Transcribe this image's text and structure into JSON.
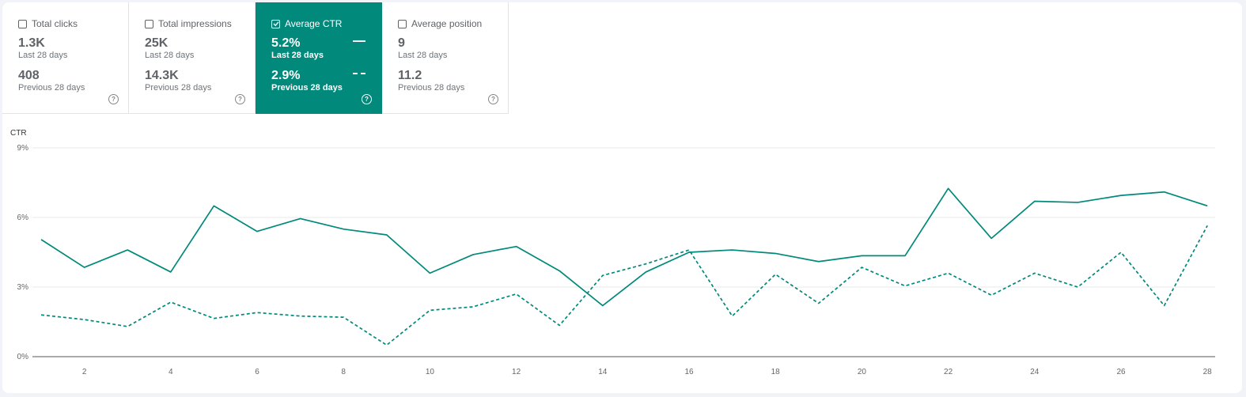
{
  "metric_cards": [
    {
      "label": "Total clicks",
      "checked": false,
      "value": "1.3K",
      "period": "Last 28 days",
      "prev_value": "408",
      "prev_period": "Previous 28 days"
    },
    {
      "label": "Total impressions",
      "checked": false,
      "value": "25K",
      "period": "Last 28 days",
      "prev_value": "14.3K",
      "prev_period": "Previous 28 days"
    },
    {
      "label": "Average CTR",
      "checked": true,
      "value": "5.2%",
      "period": "Last 28 days",
      "prev_value": "2.9%",
      "prev_period": "Previous 28 days"
    },
    {
      "label": "Average position",
      "checked": false,
      "value": "9",
      "period": "Last 28 days",
      "prev_value": "11.2",
      "prev_period": "Previous 28 days"
    }
  ],
  "help_glyph": "?",
  "colors": {
    "accent": "#01897b",
    "grid": "#e8e8e8"
  },
  "chart_data": {
    "type": "line",
    "ylabel": "CTR",
    "xlabel": "",
    "x": [
      1,
      2,
      3,
      4,
      5,
      6,
      7,
      8,
      9,
      10,
      11,
      12,
      13,
      14,
      15,
      16,
      17,
      18,
      19,
      20,
      21,
      22,
      23,
      24,
      25,
      26,
      27,
      28
    ],
    "x_ticks": [
      "2",
      "4",
      "6",
      "8",
      "10",
      "12",
      "14",
      "16",
      "18",
      "20",
      "22",
      "24",
      "26",
      "28"
    ],
    "y_ticks": [
      "0%",
      "3%",
      "6%",
      "9%"
    ],
    "ylim": [
      0,
      9
    ],
    "grid": true,
    "series": [
      {
        "style": "solid",
        "values": [
          5.05,
          3.85,
          4.6,
          3.65,
          6.5,
          5.4,
          5.95,
          5.5,
          5.25,
          3.6,
          4.4,
          4.75,
          3.7,
          2.2,
          3.65,
          4.5,
          4.6,
          4.45,
          4.1,
          4.35,
          4.35,
          7.25,
          5.1,
          6.7,
          6.65,
          6.95,
          7.1,
          6.5
        ]
      },
      {
        "style": "dashed",
        "values": [
          1.8,
          1.6,
          1.3,
          2.35,
          1.65,
          1.9,
          1.75,
          1.7,
          0.5,
          2.0,
          2.15,
          2.7,
          1.35,
          3.5,
          4.0,
          4.6,
          1.75,
          3.55,
          2.3,
          3.85,
          3.05,
          3.6,
          2.65,
          3.6,
          3.0,
          4.5,
          2.2,
          5.65
        ]
      }
    ]
  }
}
